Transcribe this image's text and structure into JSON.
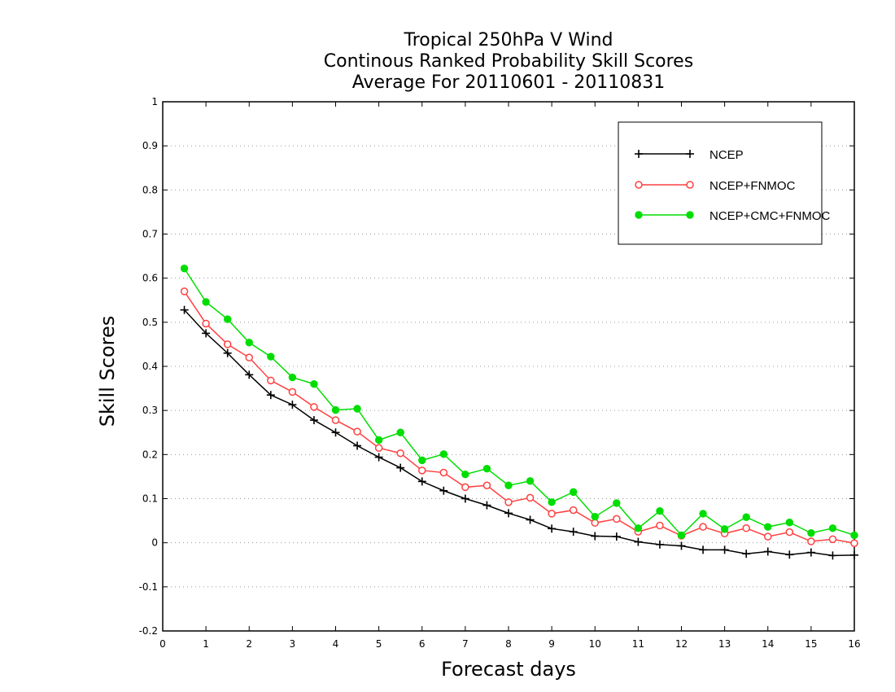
{
  "chart_data": {
    "type": "line",
    "title": [
      "Tropical 250hPa V Wind",
      "Continous Ranked Probability Skill Scores",
      "Average For 20110601 - 20110831"
    ],
    "xlabel": "Forecast days",
    "ylabel": "Skill Scores",
    "xlim": [
      0,
      16
    ],
    "ylim": [
      -0.2,
      1
    ],
    "xticks": [
      "0",
      "1",
      "2",
      "3",
      "4",
      "5",
      "6",
      "7",
      "8",
      "9",
      "10",
      "11",
      "12",
      "13",
      "14",
      "15",
      "16"
    ],
    "yticks": [
      "-0.2",
      "-0.1",
      "0",
      "0.1",
      "0.2",
      "0.3",
      "0.4",
      "0.5",
      "0.6",
      "0.7",
      "0.8",
      "0.9",
      "1"
    ],
    "grid": "dotted horizontal",
    "legend_position": "top-right",
    "x": [
      0.5,
      1,
      1.5,
      2,
      2.5,
      3,
      3.5,
      4,
      4.5,
      5,
      5.5,
      6,
      6.5,
      7,
      7.5,
      8,
      8.5,
      9,
      9.5,
      10,
      10.5,
      11,
      11.5,
      12,
      12.5,
      13,
      13.5,
      14,
      14.5,
      15,
      15.5,
      16
    ],
    "series": [
      {
        "name": "NCEP",
        "color": "#000000",
        "marker": "plus",
        "values": [
          0.528,
          0.475,
          0.43,
          0.381,
          0.335,
          0.313,
          0.278,
          0.25,
          0.22,
          0.194,
          0.17,
          0.139,
          0.118,
          0.1,
          0.085,
          0.067,
          0.052,
          0.032,
          0.025,
          0.015,
          0.014,
          0.002,
          -0.004,
          -0.007,
          -0.016,
          -0.016,
          -0.025,
          -0.02,
          -0.027,
          -0.022,
          -0.029,
          -0.028
        ]
      },
      {
        "name": "NCEP+FNMOC",
        "color": "#ff4040",
        "marker": "open-circle",
        "values": [
          0.57,
          0.497,
          0.45,
          0.42,
          0.368,
          0.342,
          0.308,
          0.278,
          0.252,
          0.215,
          0.203,
          0.164,
          0.159,
          0.126,
          0.13,
          0.092,
          0.102,
          0.066,
          0.074,
          0.045,
          0.054,
          0.025,
          0.039,
          0.016,
          0.036,
          0.021,
          0.033,
          0.014,
          0.024,
          0.003,
          0.008,
          -0.001
        ]
      },
      {
        "name": "NCEP+CMC+FNMOC",
        "color": "#00dd00",
        "marker": "filled-circle",
        "values": [
          0.622,
          0.546,
          0.507,
          0.454,
          0.422,
          0.375,
          0.36,
          0.301,
          0.304,
          0.233,
          0.25,
          0.187,
          0.201,
          0.155,
          0.168,
          0.13,
          0.14,
          0.092,
          0.115,
          0.059,
          0.09,
          0.033,
          0.072,
          0.017,
          0.066,
          0.031,
          0.058,
          0.036,
          0.046,
          0.022,
          0.033,
          0.017
        ]
      }
    ]
  }
}
